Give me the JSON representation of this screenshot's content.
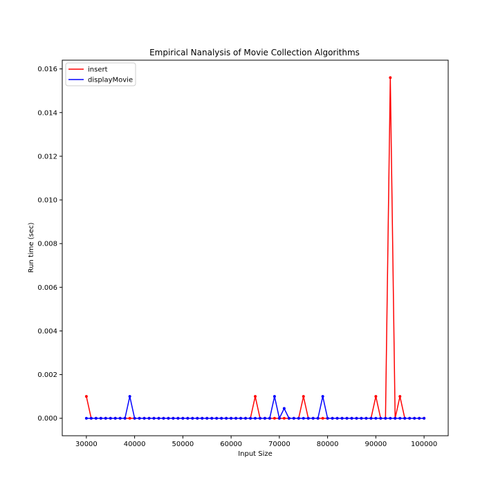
{
  "chart_data": {
    "type": "line",
    "title": "Empirical Nanalysis of Movie Collection Algorithms",
    "xlabel": "Input Size",
    "ylabel": "Run time (sec)",
    "xlim": [
      25000,
      105000
    ],
    "ylim": [
      -0.0008,
      0.0164
    ],
    "xticks": [
      30000,
      40000,
      50000,
      60000,
      70000,
      80000,
      90000,
      100000
    ],
    "yticks": [
      0.0,
      0.002,
      0.004,
      0.006,
      0.008,
      0.01,
      0.012,
      0.014,
      0.016
    ],
    "xtick_labels": [
      "30000",
      "40000",
      "50000",
      "60000",
      "70000",
      "80000",
      "90000",
      "100000"
    ],
    "ytick_labels": [
      "0.000",
      "0.002",
      "0.004",
      "0.006",
      "0.008",
      "0.010",
      "0.012",
      "0.014",
      "0.016"
    ],
    "grid": false,
    "legend_position": "top-left",
    "x": [
      30000,
      31000,
      32000,
      33000,
      34000,
      35000,
      36000,
      37000,
      38000,
      39000,
      40000,
      41000,
      42000,
      43000,
      44000,
      45000,
      46000,
      47000,
      48000,
      49000,
      50000,
      51000,
      52000,
      53000,
      54000,
      55000,
      56000,
      57000,
      58000,
      59000,
      60000,
      61000,
      62000,
      63000,
      64000,
      65000,
      66000,
      67000,
      68000,
      69000,
      70000,
      71000,
      72000,
      73000,
      74000,
      75000,
      76000,
      77000,
      78000,
      79000,
      80000,
      81000,
      82000,
      83000,
      84000,
      85000,
      86000,
      87000,
      88000,
      89000,
      90000,
      91000,
      92000,
      93000,
      94000,
      95000,
      96000,
      97000,
      98000,
      99000,
      100000
    ],
    "series": [
      {
        "name": "insert",
        "color": "#ff0000",
        "values": [
          0.001,
          0,
          0,
          0,
          0,
          0,
          0,
          0,
          0,
          0,
          0,
          0,
          0,
          0,
          0,
          0,
          0,
          0,
          0,
          0,
          0,
          0,
          0,
          0,
          0,
          0,
          0,
          0,
          0,
          0,
          0,
          0,
          0,
          0,
          0,
          0.001,
          0,
          0,
          0,
          0,
          0,
          0,
          0,
          0,
          0,
          0.001,
          0,
          0,
          0,
          0,
          0,
          0,
          0,
          0,
          0,
          0,
          0,
          0,
          0,
          0,
          0.001,
          0,
          0,
          0.0156,
          0,
          0.001,
          0,
          0,
          0,
          0,
          0
        ]
      },
      {
        "name": "displayMovie",
        "color": "#0000ff",
        "values": [
          0,
          0,
          0,
          0,
          0,
          0,
          0,
          0,
          0,
          0.001,
          0,
          0,
          0,
          0,
          0,
          0,
          0,
          0,
          0,
          0,
          0,
          0,
          0,
          0,
          0,
          0,
          0,
          0,
          0,
          0,
          0,
          0,
          0,
          0,
          0,
          0,
          0,
          0,
          0,
          0.001,
          0,
          0.00045,
          0,
          0,
          0,
          0,
          0,
          0,
          0,
          0.001,
          0,
          0,
          0,
          0,
          0,
          0,
          0,
          0,
          0,
          0,
          0,
          0,
          0,
          0,
          0,
          0,
          0,
          0,
          0,
          0,
          0
        ]
      }
    ]
  }
}
